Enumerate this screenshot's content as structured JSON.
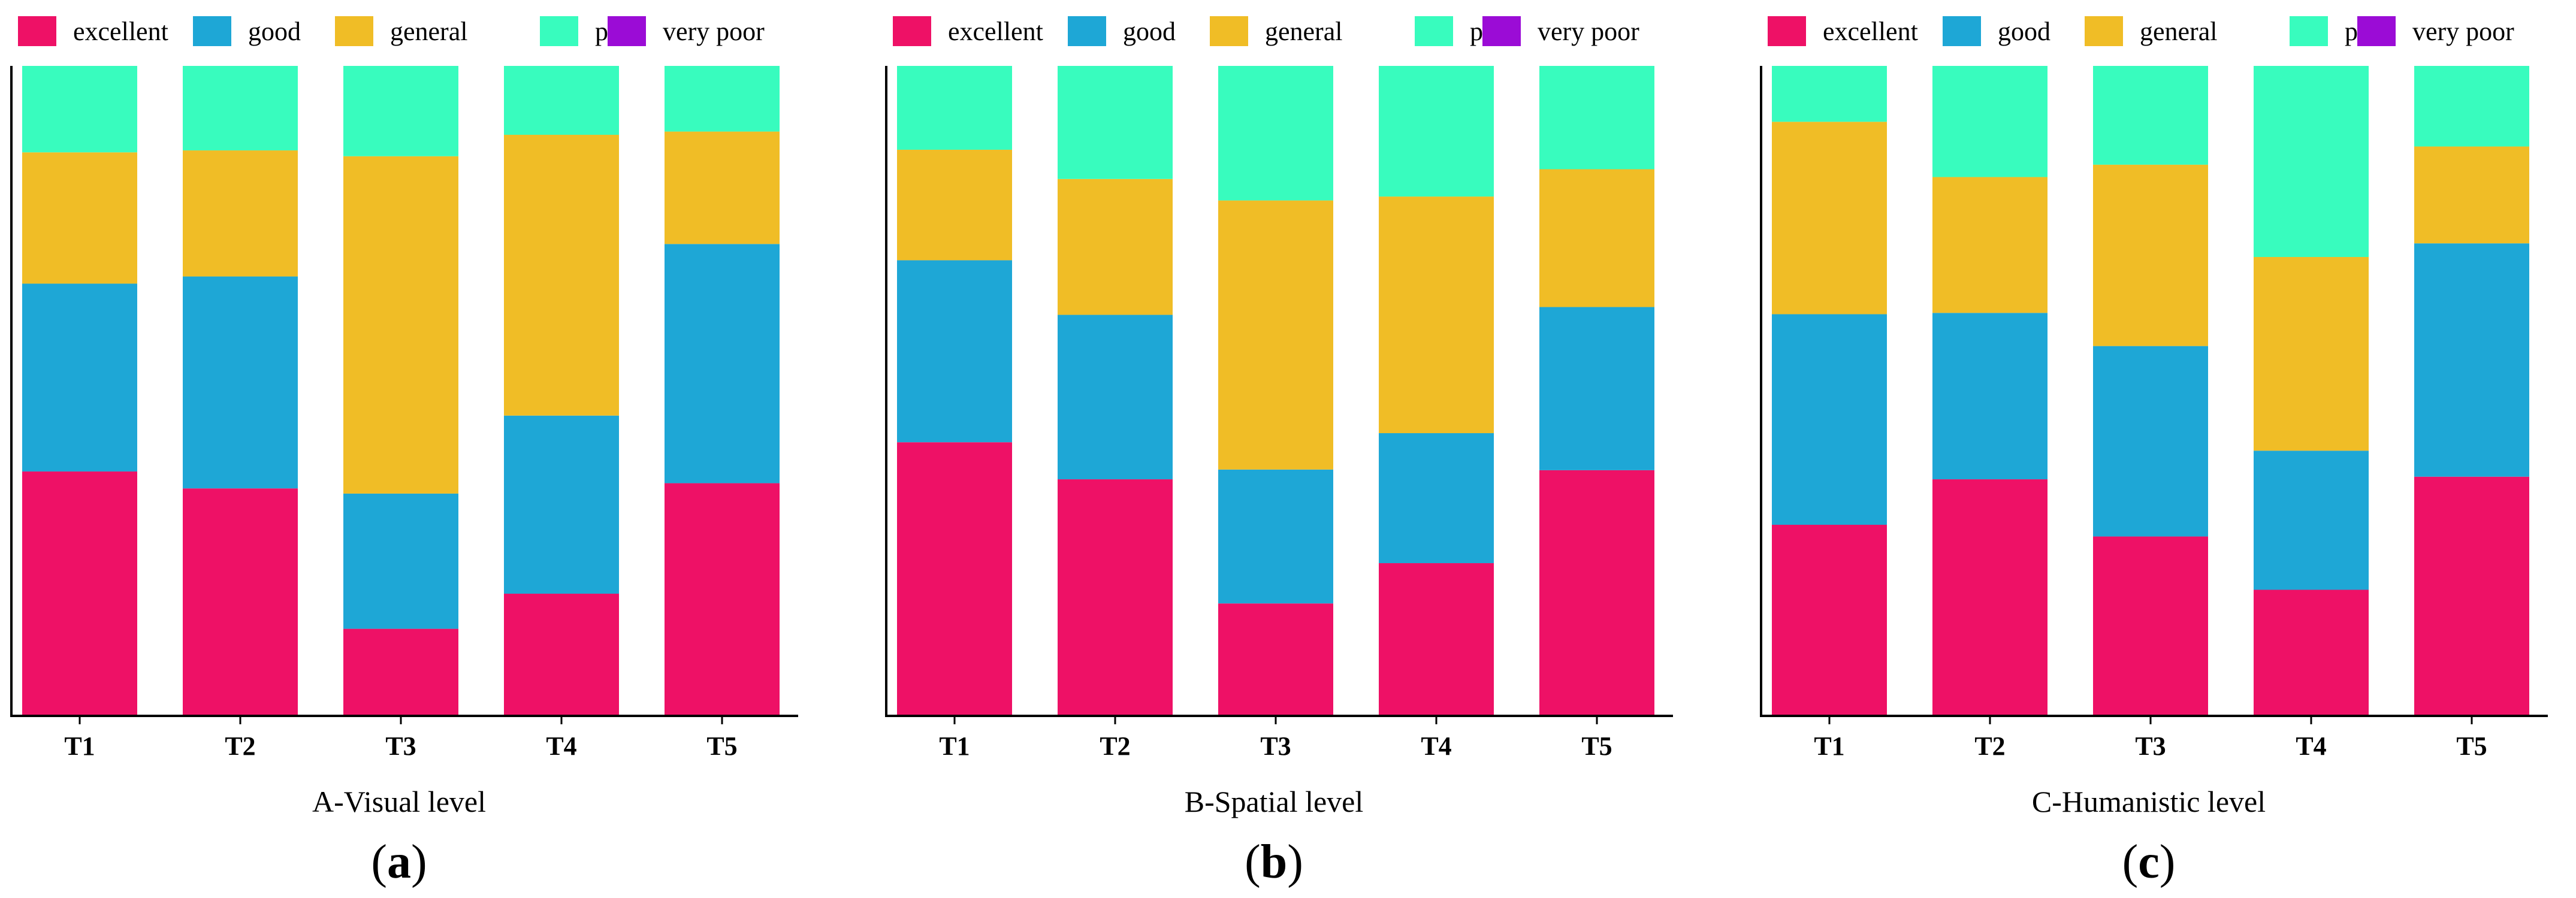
{
  "chart_data": [
    {
      "type": "bar",
      "stacked": true,
      "title": "",
      "xlabel": "A-Visual level",
      "ylabel": "",
      "ylim": [
        0,
        100
      ],
      "panel_label": "a",
      "legend_position": "top",
      "categories": [
        "T1",
        "T2",
        "T3",
        "T4",
        "T5"
      ],
      "series": [
        {
          "name": "excellent",
          "color": "#EE1166",
          "values": [
            37.6,
            35.0,
            13.4,
            18.8,
            35.8
          ]
        },
        {
          "name": "good",
          "color": "#1EA7D6",
          "values": [
            28.9,
            32.6,
            20.8,
            27.4,
            36.8
          ]
        },
        {
          "name": "general",
          "color": "#F0BD26",
          "values": [
            20.2,
            19.4,
            51.9,
            43.2,
            17.3
          ]
        },
        {
          "name": "poor",
          "color": "#38FCBE",
          "values": [
            13.3,
            13.0,
            13.9,
            10.6,
            10.1
          ]
        },
        {
          "name": "very poor",
          "color": "#9B0CD6",
          "values": [
            0,
            0,
            0,
            0,
            0
          ]
        }
      ]
    },
    {
      "type": "bar",
      "stacked": true,
      "title": "",
      "xlabel": "B-Spatial level",
      "ylabel": "",
      "ylim": [
        0,
        100
      ],
      "panel_label": "b",
      "legend_position": "top",
      "categories": [
        "T1",
        "T2",
        "T3",
        "T4",
        "T5"
      ],
      "series": [
        {
          "name": "excellent",
          "color": "#EE1166",
          "values": [
            42.1,
            36.4,
            17.3,
            23.5,
            37.8
          ]
        },
        {
          "name": "good",
          "color": "#1EA7D6",
          "values": [
            28.0,
            25.3,
            20.6,
            20.0,
            25.1
          ]
        },
        {
          "name": "general",
          "color": "#F0BD26",
          "values": [
            17.0,
            20.9,
            41.4,
            36.4,
            21.2
          ]
        },
        {
          "name": "poor",
          "color": "#38FCBE",
          "values": [
            12.9,
            17.4,
            20.7,
            20.1,
            15.9
          ]
        },
        {
          "name": "very poor",
          "color": "#9B0CD6",
          "values": [
            0,
            0,
            0,
            0,
            0
          ]
        }
      ]
    },
    {
      "type": "bar",
      "stacked": true,
      "title": "",
      "xlabel": "C-Humanistic level",
      "ylabel": "",
      "ylim": [
        0,
        100
      ],
      "panel_label": "c",
      "legend_position": "top",
      "categories": [
        "T1",
        "T2",
        "T3",
        "T4",
        "T5"
      ],
      "series": [
        {
          "name": "excellent",
          "color": "#EE1166",
          "values": [
            29.4,
            36.4,
            27.6,
            19.4,
            36.8
          ]
        },
        {
          "name": "good",
          "color": "#1EA7D6",
          "values": [
            32.4,
            25.6,
            29.3,
            21.4,
            35.9
          ]
        },
        {
          "name": "general",
          "color": "#F0BD26",
          "values": [
            29.6,
            20.9,
            27.9,
            29.8,
            14.9
          ]
        },
        {
          "name": "poor",
          "color": "#38FCBE",
          "values": [
            8.6,
            17.1,
            15.2,
            29.4,
            12.4
          ]
        },
        {
          "name": "very poor",
          "color": "#9B0CD6",
          "values": [
            0,
            0,
            0,
            0,
            0
          ]
        }
      ]
    }
  ]
}
